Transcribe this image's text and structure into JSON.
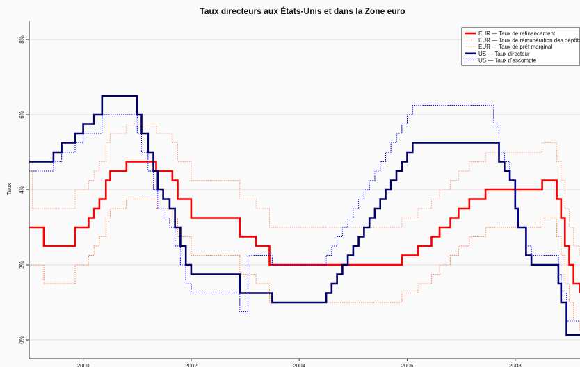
{
  "chart_data": {
    "type": "line",
    "title": "Taux directeurs aux États-Unis et dans la Zone euro",
    "xlabel": "",
    "ylabel": "Taux",
    "y_tick_labels": [
      "0%",
      "2%",
      "4%",
      "6%",
      "8%"
    ],
    "y_ticks": [
      0,
      2,
      4,
      6,
      8
    ],
    "x_tick_labels": [
      "2000",
      "2002",
      "2004",
      "2006",
      "2008"
    ],
    "x_ticks": [
      2000,
      2002,
      2004,
      2006,
      2008
    ],
    "xlim": [
      1999.0,
      2009.2
    ],
    "ylim": [
      -0.5,
      8.5
    ],
    "grid": true,
    "legend_position": "top-right",
    "line_type": "step",
    "colors": {
      "eur_refi": "#ff0000",
      "eur_depot": "#ff7f50",
      "eur_marginal": "#ff9f80",
      "us_target": "#000066",
      "us_discount": "#0000ff"
    },
    "series": [
      {
        "name": "EUR — Taux de refinancement",
        "key": "eur_refi",
        "style": "solid-thick",
        "x": [
          1999.0,
          1999.27,
          1999.85,
          2000.1,
          2000.2,
          2000.3,
          2000.42,
          2000.5,
          2000.6,
          2000.8,
          2001.35,
          2001.65,
          2001.75,
          2002.0,
          2002.9,
          2003.2,
          2003.45,
          2005.9,
          2006.2,
          2006.45,
          2006.6,
          2006.8,
          2006.95,
          2007.15,
          2007.45,
          2008.5,
          2008.77,
          2008.85,
          2008.92,
          2009.0,
          2009.08,
          2009.2
        ],
        "y": [
          3.0,
          2.5,
          3.0,
          3.25,
          3.5,
          3.75,
          4.25,
          4.5,
          4.5,
          4.75,
          4.5,
          4.25,
          3.75,
          3.25,
          2.75,
          2.5,
          2.0,
          2.25,
          2.5,
          2.75,
          3.0,
          3.25,
          3.5,
          3.75,
          4.0,
          4.25,
          3.75,
          3.25,
          2.5,
          2.0,
          1.5,
          1.25
        ]
      },
      {
        "name": "EUR — Taux de rémunération des dépôts",
        "key": "eur_depot",
        "style": "dotted",
        "x": [
          1999.0,
          1999.27,
          1999.85,
          2000.1,
          2000.2,
          2000.3,
          2000.42,
          2000.5,
          2000.6,
          2000.8,
          2001.35,
          2001.65,
          2001.75,
          2002.0,
          2002.9,
          2003.2,
          2003.45,
          2005.9,
          2006.2,
          2006.45,
          2006.6,
          2006.8,
          2006.95,
          2007.15,
          2007.45,
          2008.5,
          2008.77,
          2008.85,
          2008.92,
          2009.0,
          2009.08,
          2009.2
        ],
        "y": [
          2.0,
          1.5,
          2.0,
          2.25,
          2.5,
          2.75,
          3.25,
          3.5,
          3.5,
          3.75,
          3.5,
          3.25,
          2.75,
          2.25,
          1.75,
          1.5,
          1.0,
          1.25,
          1.5,
          1.75,
          2.0,
          2.25,
          2.5,
          2.75,
          3.0,
          3.25,
          2.75,
          2.25,
          1.5,
          1.0,
          0.5,
          0.25
        ]
      },
      {
        "name": "EUR — Taux de  prêt marginal",
        "key": "eur_marginal",
        "style": "dotted",
        "x": [
          1999.0,
          1999.06,
          1999.27,
          1999.85,
          2000.1,
          2000.2,
          2000.3,
          2000.42,
          2000.5,
          2000.6,
          2000.8,
          2001.35,
          2001.65,
          2001.75,
          2002.0,
          2002.9,
          2003.2,
          2003.45,
          2005.9,
          2006.2,
          2006.45,
          2006.6,
          2006.8,
          2006.95,
          2007.15,
          2007.45,
          2008.5,
          2008.77,
          2008.85,
          2008.92,
          2009.0,
          2009.08,
          2009.2
        ],
        "y": [
          4.5,
          3.5,
          3.5,
          4.0,
          4.25,
          4.5,
          4.75,
          5.25,
          5.5,
          5.5,
          5.75,
          5.5,
          5.25,
          4.75,
          4.25,
          3.75,
          3.5,
          3.0,
          3.25,
          3.5,
          3.75,
          4.0,
          4.25,
          4.5,
          4.75,
          5.0,
          5.25,
          4.75,
          4.25,
          3.5,
          3.0,
          2.5,
          2.25
        ]
      },
      {
        "name": "US — Taux directeur",
        "key": "us_target",
        "style": "solid-thick",
        "x": [
          1999.0,
          1999.45,
          1999.6,
          1999.85,
          2000.0,
          2000.2,
          2000.35,
          2001.0,
          2001.08,
          2001.2,
          2001.3,
          2001.38,
          2001.48,
          2001.6,
          2001.7,
          2001.8,
          2001.9,
          2002.0,
          2002.1,
          2002.9,
          2003.5,
          2004.5,
          2004.6,
          2004.7,
          2004.8,
          2004.9,
          2005.0,
          2005.1,
          2005.2,
          2005.3,
          2005.4,
          2005.5,
          2005.6,
          2005.7,
          2005.8,
          2005.9,
          2006.0,
          2006.1,
          2006.2,
          2006.3,
          2006.4,
          2006.5,
          2007.7,
          2007.8,
          2007.9,
          2008.0,
          2008.05,
          2008.1,
          2008.2,
          2008.3,
          2008.8,
          2008.85,
          2008.95,
          2009.2
        ],
        "y": [
          4.75,
          5.0,
          5.25,
          5.5,
          5.75,
          6.0,
          6.5,
          6.0,
          5.5,
          5.0,
          4.5,
          4.0,
          3.75,
          3.5,
          3.0,
          2.5,
          2.0,
          1.75,
          1.75,
          1.25,
          1.0,
          1.25,
          1.5,
          1.75,
          2.0,
          2.25,
          2.5,
          2.75,
          3.0,
          3.25,
          3.5,
          3.75,
          4.0,
          4.25,
          4.5,
          4.75,
          5.0,
          5.25,
          5.25,
          5.25,
          5.25,
          5.25,
          4.75,
          4.5,
          4.25,
          3.5,
          3.0,
          3.0,
          2.25,
          2.0,
          1.5,
          1.0,
          0.125,
          0.125
        ]
      },
      {
        "name": "US — Taux d'escompte",
        "key": "us_discount",
        "style": "dotted",
        "x": [
          1999.0,
          1999.45,
          1999.6,
          1999.85,
          2000.0,
          2000.2,
          2000.35,
          2001.0,
          2001.08,
          2001.2,
          2001.3,
          2001.38,
          2001.48,
          2001.6,
          2001.7,
          2001.8,
          2001.9,
          2002.0,
          2002.9,
          2003.05,
          2003.5,
          2004.5,
          2004.6,
          2004.7,
          2004.8,
          2004.9,
          2005.0,
          2005.1,
          2005.2,
          2005.3,
          2005.4,
          2005.5,
          2005.6,
          2005.7,
          2005.8,
          2005.9,
          2006.0,
          2006.1,
          2006.2,
          2006.3,
          2006.4,
          2007.6,
          2007.7,
          2007.8,
          2007.9,
          2008.0,
          2008.05,
          2008.2,
          2008.3,
          2008.8,
          2008.85,
          2008.95,
          2009.2
        ],
        "y": [
          4.5,
          4.75,
          5.0,
          5.25,
          5.5,
          5.5,
          6.0,
          5.5,
          5.0,
          4.5,
          4.0,
          3.5,
          3.25,
          3.0,
          2.5,
          2.0,
          1.5,
          1.25,
          0.75,
          2.25,
          2.0,
          2.25,
          2.5,
          2.75,
          3.0,
          3.25,
          3.5,
          3.75,
          4.0,
          4.25,
          4.5,
          4.75,
          5.0,
          5.25,
          5.5,
          5.75,
          6.0,
          6.25,
          6.25,
          6.25,
          6.25,
          5.75,
          5.0,
          4.75,
          4.25,
          3.5,
          3.0,
          2.5,
          2.25,
          1.75,
          1.25,
          0.5,
          0.5
        ]
      }
    ]
  }
}
